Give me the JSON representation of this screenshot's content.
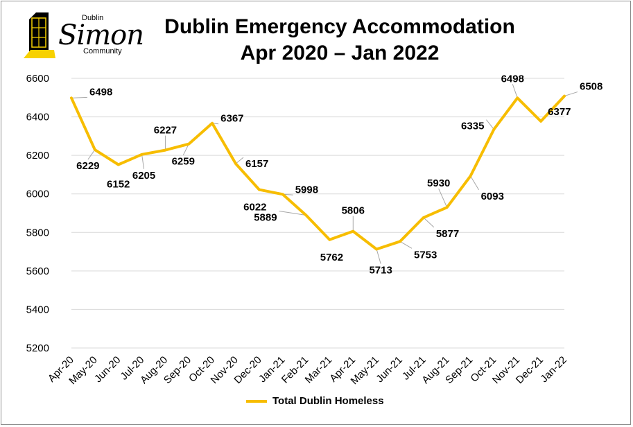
{
  "title_line1": "Dublin Emergency Accommodation",
  "title_line2": "Apr 2020 – Jan 2022",
  "logo": {
    "top": "Dublin",
    "main": "Simon",
    "bottom": "Community"
  },
  "colors": {
    "line": "#f7bd00",
    "logo_yellow": "#f7d100",
    "gridline": "#d9d9d9",
    "leader": "#a6a6a6"
  },
  "chart_data": {
    "type": "line",
    "categories": [
      "Apr-20",
      "May-20",
      "Jun-20",
      "Jul-20",
      "Aug-20",
      "Sep-20",
      "Oct-20",
      "Nov-20",
      "Dec-20",
      "Jan-21",
      "Feb-21",
      "Mar-21",
      "Apr-21",
      "May-21",
      "Jun-21",
      "Jul-21",
      "Aug-21",
      "Sep-21",
      "Oct-21",
      "Nov-21",
      "Dec-21",
      "Jan-22"
    ],
    "series": [
      {
        "name": "Total Dublin Homeless",
        "values": [
          6498,
          6229,
          6152,
          6205,
          6227,
          6259,
          6367,
          6157,
          6022,
          5998,
          5889,
          5762,
          5806,
          5713,
          5753,
          5877,
          5930,
          6093,
          6335,
          6498,
          6377,
          6508
        ]
      }
    ],
    "ylim": [
      5200,
      6600
    ],
    "yticks": [
      5200,
      5400,
      5600,
      5800,
      6000,
      6200,
      6400,
      6600
    ],
    "grid": true,
    "legend_position": "bottom"
  }
}
